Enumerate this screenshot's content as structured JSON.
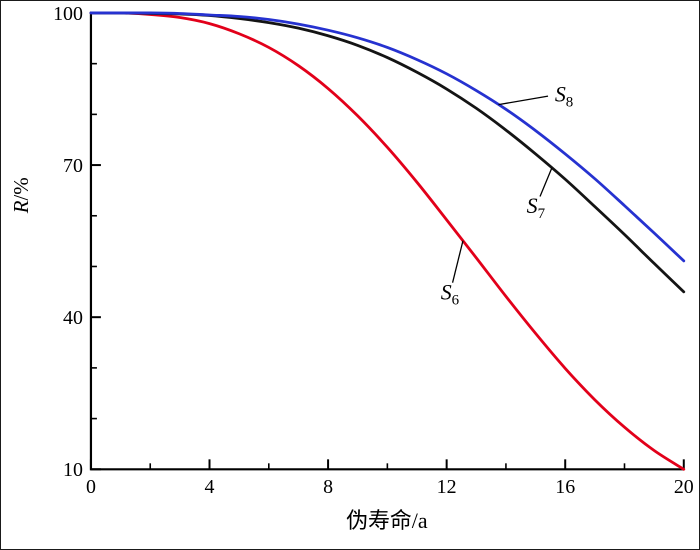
{
  "figure": {
    "background": "#ffffff",
    "border_color": "#1a1a1a"
  },
  "chart_data": {
    "type": "line",
    "title": "",
    "xlabel": "伪寿命/a",
    "ylabel": "R/%",
    "ylabel_var": "R",
    "ylabel_unit": "/%",
    "xlim": [
      0,
      20
    ],
    "ylim": [
      10,
      100
    ],
    "grid": false,
    "legend": "inline-annotations",
    "x_major_ticks": [
      0,
      4,
      8,
      12,
      16,
      20
    ],
    "x_minor_ticks": [
      2,
      6,
      10,
      14,
      18
    ],
    "y_major_ticks": [
      10,
      40,
      70,
      100
    ],
    "y_minor_ticks": [
      20,
      30,
      50,
      60,
      80,
      90
    ],
    "x": [
      0,
      1,
      2,
      3,
      4,
      5,
      6,
      7,
      8,
      9,
      10,
      11,
      12,
      13,
      14,
      15,
      16,
      17,
      18,
      19,
      20
    ],
    "series": [
      {
        "name": "S6",
        "label_main": "S",
        "label_sub": "6",
        "color": "#e2001a",
        "values": [
          100,
          100,
          99.7,
          99.1,
          97.9,
          95.9,
          93.2,
          89.6,
          85.1,
          79.7,
          73.5,
          66.6,
          59.2,
          51.7,
          44.1,
          36.8,
          29.9,
          23.7,
          18.3,
          13.7,
          10.0
        ]
      },
      {
        "name": "S7",
        "label_main": "S",
        "label_sub": "7",
        "color": "#141414",
        "values": [
          100,
          100,
          99.9,
          99.8,
          99.5,
          98.9,
          98.1,
          97.0,
          95.5,
          93.6,
          91.2,
          88.3,
          85.0,
          81.2,
          76.9,
          72.2,
          67.2,
          61.8,
          56.3,
          50.6,
          45.0
        ]
      },
      {
        "name": "S8",
        "label_main": "S",
        "label_sub": "8",
        "color": "#2632d0",
        "values": [
          100,
          100,
          100,
          99.9,
          99.6,
          99.3,
          98.7,
          97.8,
          96.6,
          95.1,
          93.2,
          90.8,
          88.0,
          84.7,
          81.0,
          76.8,
          72.2,
          67.3,
          62.0,
          56.6,
          51.1
        ]
      }
    ],
    "annotations": [
      {
        "series": "S8",
        "at_x": 13.75,
        "label_x": 15.65,
        "label_y": 82.5,
        "leader_x": 15.42,
        "leader_y": 83.6
      },
      {
        "series": "S7",
        "at_x": 15.55,
        "label_x": 14.7,
        "label_y": 60.5,
        "leader_x": 15.15,
        "leader_y": 63.8
      },
      {
        "series": "S6",
        "at_x": 12.55,
        "label_x": 11.8,
        "label_y": 43.5,
        "leader_x": 12.2,
        "leader_y": 46.8
      }
    ]
  }
}
